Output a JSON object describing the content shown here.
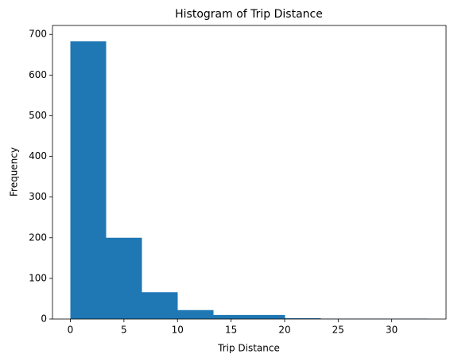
{
  "chart_data": {
    "type": "histogram",
    "title": "Histogram of Trip Distance",
    "x_label": "Trip Distance",
    "y_label": "Frequency",
    "bins": [
      0,
      3.34,
      6.68,
      10.02,
      13.36,
      16.7,
      20.04,
      23.38,
      26.72,
      30.06,
      33.4
    ],
    "values": [
      683,
      200,
      66,
      22,
      10,
      10,
      2,
      1,
      1,
      1
    ],
    "color": "#1f77b4",
    "xlim": [
      -1.67,
      35.07
    ],
    "xticks": [
      0,
      5,
      10,
      15,
      20,
      25,
      30
    ],
    "ylim": [
      0,
      722
    ],
    "yticks": [
      0,
      100,
      200,
      300,
      400,
      500,
      600,
      700
    ]
  }
}
